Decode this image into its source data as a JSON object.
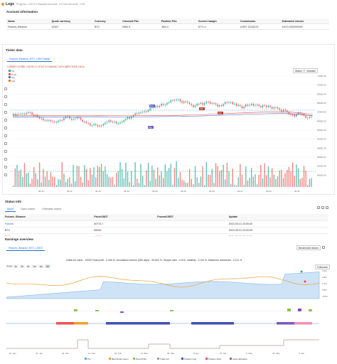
{
  "logs": {
    "title": "Logs",
    "meta": "Progress : 100.0 %   Elapsed seconds : 0.0   Run seconds : 0.00"
  },
  "account": {
    "title": "Account information",
    "headers": [
      "Name",
      "Quote currency",
      "Currency",
      "Closeout P&L",
      "Position P&L",
      "Current margin",
      "Commission",
      "Estimated returns"
    ],
    "row": [
      "Futures_Binance",
      "USDT",
      "BTC",
      "2560.5",
      "-854.4",
      "6771.2",
      "USDT 33.62121",
      "1673.2392393393"
    ]
  },
  "ticker": {
    "title": "Ticker data",
    "tab": "Futures_Binance_BTC_USDT.swap",
    "legend": "O 65825 H 67882 L 64726.1 C 67117.5 CHANGE 2.40% AMPLITUDE 4.81%",
    "indicators": [
      "Vol",
      "Profit",
      "Buy",
      "Sell"
    ],
    "btn_status": "Status",
    "btn_indicator": "Indicator",
    "x_ticks": [
      "05-10",
      "05-12",
      "05-15",
      "05-18",
      "05-20",
      "05-23",
      "05-25",
      "05-27",
      "05-29",
      "05-31"
    ],
    "y_ticks": [
      "71000.00",
      "70000.00",
      "69000.00",
      "68000.00",
      "67000.00",
      "66000.00",
      "65000.00",
      "64000.00",
      "63000.00",
      "62000.00",
      "61000.00",
      "60000.00"
    ],
    "markers": [
      "Buy",
      "Sell",
      "Sell",
      "Buy"
    ]
  },
  "status": {
    "title": "Status info",
    "tabs": [
      "Asset",
      "Open orders",
      "Orderable orders"
    ],
    "headers": [
      "Futures_Binance",
      "Price/USDT",
      "Frozen/USDT",
      "Update"
    ],
    "rows": [
      [
        "Futures",
        "60774.7",
        "",
        "2024-05-31 23:00:00"
      ],
      [
        "BTC",
        "65000",
        "",
        "2024-05-31 23:00:00"
      ],
      [
        "BNF",
        "-4828.0",
        "",
        "2024-05-31 23:00:00"
      ]
    ]
  },
  "earnings": {
    "title": "Earnings overview",
    "tab": "Futures_Binance_BTC_USDT",
    "summary": "Initial net value : 10000 Total profit : 3.346 %, Annualised returns (365 days) : 39.602 %, Sharpe ratio : 0.216, Volatility : 3.116 %, Maximum drawdown : 2.111 %",
    "zoom_label": "Zoom",
    "zoom_opts": [
      "1h",
      "3h",
      "1d",
      "1w",
      "1m",
      "All"
    ],
    "legend": [
      "Pnl",
      "Benchmark return",
      "Period P&L",
      "Trade Vol",
      "Position long",
      "Position short",
      "Asset allocation"
    ],
    "x_ticks": [
      "01. Jan",
      "15. Jan",
      "29. Jan",
      "12. Feb",
      "26. Feb",
      "11. Mar",
      "25. Mar",
      "8. Apr",
      "22. Apr",
      "6. May",
      "20. May",
      "3. Jun"
    ],
    "y_ticks": [
      "3.5%",
      "2.5%",
      "1.5%",
      "0.5%",
      "-0.5%"
    ],
    "benchmark_label": "Benchmark returns",
    "fullscreen": "Fullscreen"
  },
  "colors": {
    "accent": "#1d6fce",
    "up": "#26a69a",
    "down": "#ef5350",
    "buy": "#6a5acd",
    "orange": "#f0a030"
  }
}
